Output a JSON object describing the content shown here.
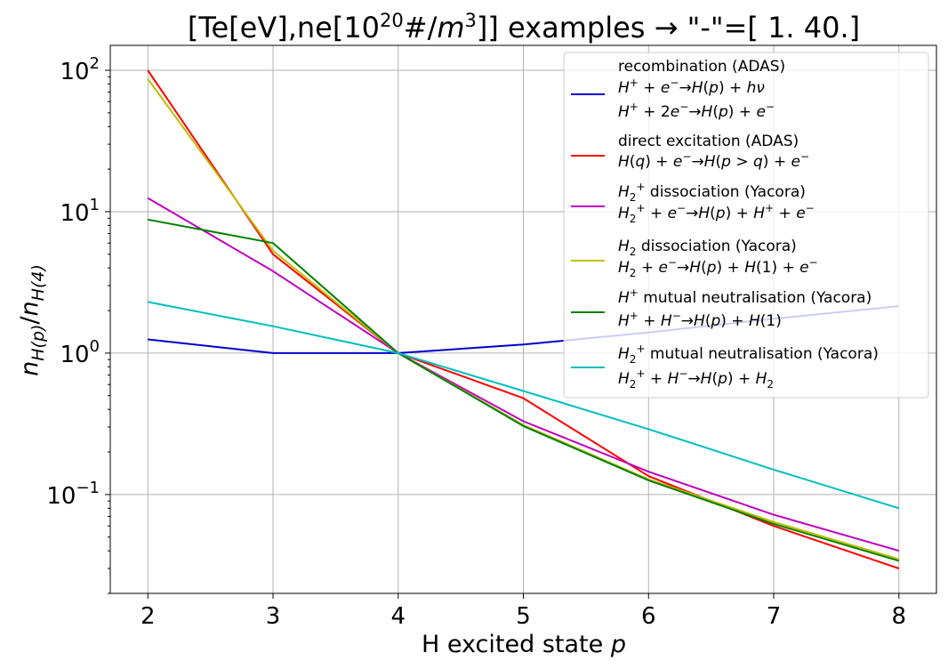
{
  "chart_data": {
    "type": "line",
    "title": "[Te[eV],ne[10²⁰#/m³]] examples → \"-\"=[ 1. 40.]",
    "xlabel": "H excited state p",
    "ylabel": "n_H(p)/n_H(4)",
    "x": [
      2,
      3,
      4,
      5,
      6,
      7,
      8
    ],
    "xlim": [
      1.7,
      8.3
    ],
    "ylim": [
      0.02,
      150
    ],
    "yscale": "log",
    "grid": true,
    "legend_position": "top-right",
    "x_ticks": [
      "2",
      "3",
      "4",
      "5",
      "6",
      "7",
      "8"
    ],
    "y_ticks": [
      {
        "value": 0.1,
        "mantissa": "10",
        "exp": "−1"
      },
      {
        "value": 1,
        "mantissa": "10",
        "exp": "0"
      },
      {
        "value": 10,
        "mantissa": "10",
        "exp": "1"
      },
      {
        "value": 100,
        "mantissa": "10",
        "exp": "2"
      }
    ],
    "series": [
      {
        "name": "recombination (ADAS) H⁺ + e⁻ → H(p) + hν; H⁺ + 2e⁻ → H(p) + e⁻",
        "color": "#0000cc",
        "values": [
          1.25,
          1.0,
          1.0,
          1.15,
          1.4,
          1.75,
          2.15
        ]
      },
      {
        "name": "direct excitation (ADAS) H(q) + e⁻ → H(p > q) + e⁻",
        "color": "#ff0000",
        "values": [
          100,
          5.0,
          1.0,
          0.48,
          0.135,
          0.06,
          0.03
        ]
      },
      {
        "name": "H₂⁺ dissociation (Yacora) H₂⁺ + e⁻ → H(p) + H⁺ + e⁻",
        "color": "#bf00bf",
        "values": [
          12.5,
          3.8,
          1.0,
          0.33,
          0.145,
          0.072,
          0.04
        ]
      },
      {
        "name": "H₂ dissociation (Yacora) H₂ + e⁻ → H(p) + H(1) + e⁻",
        "color": "#bfbf00",
        "values": [
          87,
          5.3,
          1.0,
          0.31,
          0.128,
          0.064,
          0.035
        ]
      },
      {
        "name": "H⁺ mutual neutralisation (Yacora) H⁺ + H⁻ → H(p) + H(1)",
        "color": "#008000",
        "values": [
          8.8,
          6.0,
          1.0,
          0.305,
          0.126,
          0.062,
          0.034
        ]
      },
      {
        "name": "H₂⁺ mutual neutralisation (Yacora) H₂⁺ + H⁻ → H(p) + H₂",
        "color": "#00bfbf",
        "values": [
          2.3,
          1.55,
          1.0,
          0.54,
          0.29,
          0.15,
          0.08
        ]
      }
    ]
  }
}
